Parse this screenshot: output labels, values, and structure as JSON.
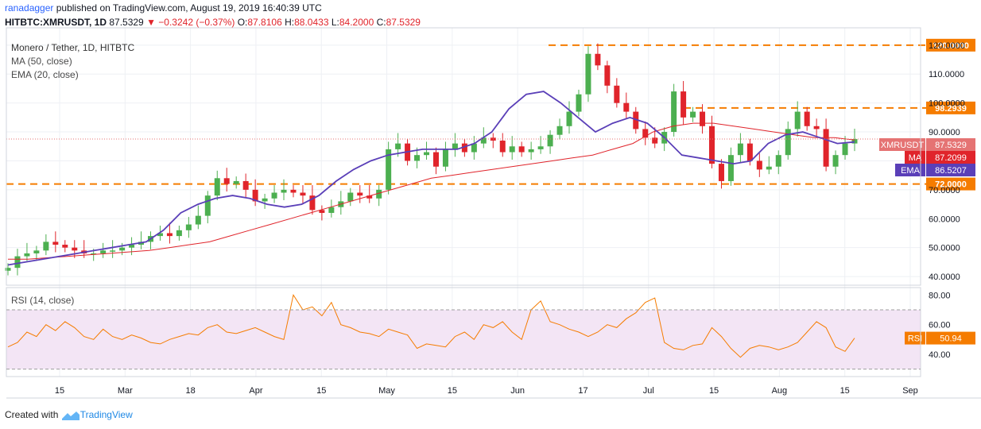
{
  "header": {
    "author": "ranadagger",
    "published": "published on TradingView.com, August 19, 2019 16:40:39 UTC",
    "symbol": "HITBTC:XMRUSDT, 1D",
    "price": "87.5329",
    "change": "▼ −0.3242 (−0.37%)",
    "open_label": "O:",
    "open": "87.8106",
    "high_label": "H:",
    "high": "88.0433",
    "low_label": "L:",
    "low": "84.2000",
    "close_label": "C:",
    "close": "87.5329"
  },
  "legend": {
    "title": "Monero / Tether, 1D, HITBTC",
    "ma": "MA (50, close)",
    "ema": "EMA (20, close)",
    "rsi": "RSI (14, close)"
  },
  "footer": {
    "created_with": "Created with",
    "brand": "TradingView"
  },
  "colors": {
    "up": "#4caf50",
    "down": "#e0242b",
    "ma": "#e0242b",
    "ema": "#5a3fb8",
    "rsi": "#f57c00",
    "level": "#f57c00",
    "rsi_band": "#f3e5f5",
    "price_label": "#e57373"
  },
  "chart_data": [
    {
      "type": "candlestick",
      "title": "Monero / Tether, 1D, HITBTC",
      "ylim": [
        37,
        126
      ],
      "y_ticks": [
        "40.0000",
        "50.0000",
        "60.0000",
        "70.0000",
        "80.0000",
        "90.0000",
        "100.0000",
        "110.0000",
        "120.0000"
      ],
      "x_ticks": [
        "15",
        "Mar",
        "18",
        "Apr",
        "15",
        "May",
        "15",
        "Jun",
        "17",
        "Jul",
        "15",
        "Aug",
        "15",
        "Sep"
      ],
      "close_path": [
        43,
        47,
        48,
        49,
        52,
        51,
        50,
        49,
        48,
        48,
        49,
        49,
        50,
        51,
        52,
        54,
        55,
        54,
        56,
        58,
        61,
        68,
        74,
        72,
        73,
        70,
        66,
        67,
        69,
        70,
        69,
        68,
        63,
        62,
        64,
        66,
        69,
        68,
        67,
        70,
        84,
        86,
        80,
        82,
        83,
        78,
        84,
        86,
        83,
        86,
        88,
        87,
        83,
        85,
        83,
        84,
        85,
        89,
        92,
        97,
        103,
        117,
        113,
        106,
        100,
        97,
        91,
        88,
        86,
        90,
        104,
        95,
        97,
        92,
        79,
        73,
        82,
        86,
        80,
        77,
        78,
        82,
        91,
        97,
        92,
        91,
        78,
        82,
        86,
        87.53
      ],
      "ma_path": [
        46,
        46,
        46.5,
        47,
        47.5,
        48,
        48.5,
        49,
        50,
        51,
        52,
        54,
        56,
        58,
        60,
        62,
        64,
        66,
        68,
        70,
        72,
        74,
        75,
        76,
        77,
        78,
        79,
        80,
        81,
        82,
        84,
        86,
        90,
        92,
        93,
        93,
        92,
        91,
        90,
        89,
        88,
        88,
        87.21
      ],
      "ema_path": [
        44,
        45,
        46,
        47,
        48,
        49,
        50,
        51,
        52,
        56,
        62,
        65,
        67,
        68,
        67,
        65,
        64,
        65,
        68,
        73,
        77,
        80,
        82,
        83,
        84,
        84,
        84,
        86,
        90,
        98,
        103,
        104,
        100,
        95,
        90,
        93,
        95,
        93,
        88,
        82,
        81,
        80,
        79,
        80,
        86,
        89,
        90,
        88,
        86,
        86.52
      ],
      "annotations": [
        {
          "label": "120.0000",
          "value": 120.0
        },
        {
          "label": "98.2939",
          "value": 98.2939
        },
        {
          "label": "72.0000",
          "value": 72.0
        }
      ],
      "price_labels": [
        {
          "name": "XMRUSDT",
          "value_label": "87.5329",
          "value": 87.5329
        },
        {
          "name": "MA",
          "value_label": "87.2099",
          "value": 87.2099
        },
        {
          "name": "EMA",
          "value_label": "86.5207",
          "value": 86.5207
        }
      ]
    },
    {
      "type": "line",
      "title": "RSI (14, close)",
      "ylim": [
        25,
        85
      ],
      "y_ticks": [
        "40.00",
        "60.00",
        "80.00"
      ],
      "band": [
        30,
        70
      ],
      "values": [
        45,
        48,
        55,
        52,
        60,
        56,
        62,
        58,
        52,
        50,
        57,
        52,
        50,
        53,
        51,
        48,
        47,
        50,
        52,
        54,
        53,
        58,
        60,
        55,
        54,
        56,
        58,
        55,
        52,
        50,
        80,
        70,
        72,
        66,
        75,
        60,
        58,
        55,
        54,
        52,
        57,
        55,
        53,
        44,
        47,
        46,
        45,
        52,
        55,
        50,
        60,
        58,
        62,
        55,
        50,
        70,
        76,
        62,
        60,
        57,
        55,
        52,
        55,
        60,
        58,
        64,
        68,
        75,
        78,
        48,
        44,
        43,
        46,
        47,
        58,
        52,
        44,
        38,
        44,
        46,
        45,
        43,
        45,
        48,
        55,
        62,
        58,
        45,
        42,
        50.94
      ],
      "last_label": "RSI",
      "last_value": "50.94"
    }
  ]
}
